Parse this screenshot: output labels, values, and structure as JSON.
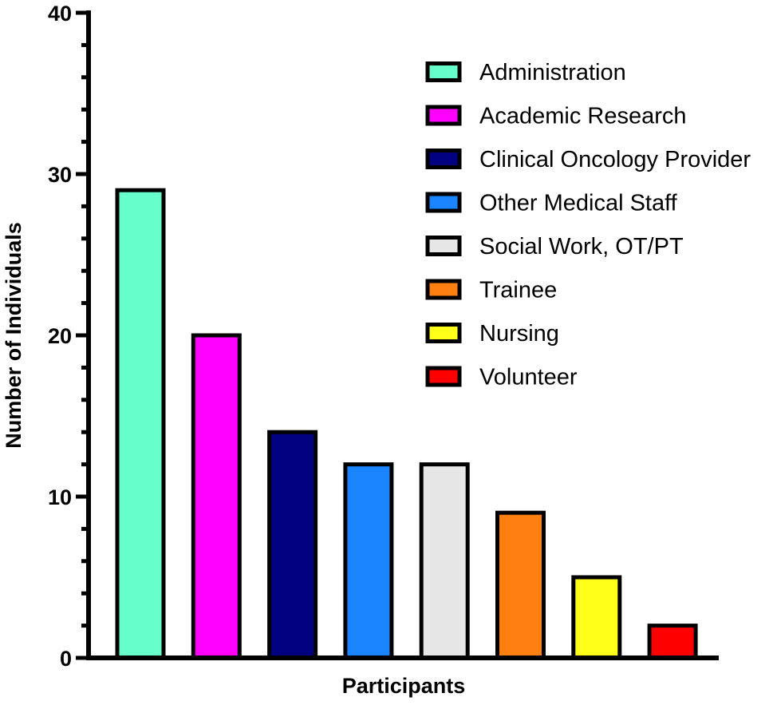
{
  "chart_data": {
    "type": "bar",
    "title": "",
    "xlabel": "Participants",
    "ylabel": "Number of Individuals",
    "ylim": [
      0,
      40
    ],
    "yticks": [
      0,
      10,
      20,
      30,
      40
    ],
    "grid": false,
    "legend_position": "top-right",
    "categories": [
      "Administration",
      "Academic Research",
      "Clinical Oncology Provider",
      "Other Medical Staff",
      "Social Work, OT/PT",
      "Trainee",
      "Nursing",
      "Volunteer"
    ],
    "values": [
      29,
      20,
      14,
      12,
      12,
      9,
      5,
      2
    ],
    "colors": [
      "#66ffcc",
      "#ff00ff",
      "#000080",
      "#1a85ff",
      "#e6e6e6",
      "#ff8010",
      "#ffff1a",
      "#ff0000"
    ],
    "bar_edge_color": "#000000",
    "axis_color": "#000000"
  }
}
